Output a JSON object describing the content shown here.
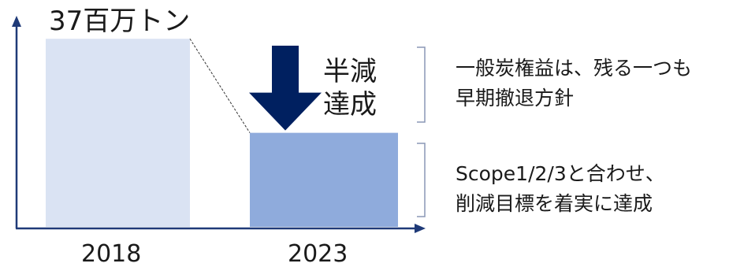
{
  "chart_data": {
    "type": "bar",
    "categories": [
      "2018",
      "2023"
    ],
    "series": [
      {
        "values": [
          37,
          18.5
        ]
      }
    ],
    "value_label": "37百万トン",
    "ylim": [
      0,
      42
    ],
    "grid": false,
    "colors": [
      "#dae3f3",
      "#8fabdc"
    ],
    "arrow_color": "#002060"
  },
  "annotations": {
    "halved": [
      "半減",
      "達成"
    ],
    "coal_note": [
      "一般炭権益は、残る一つも",
      "早期撤退方針"
    ],
    "scope_note": [
      "Scope1/2/3と合わせ、",
      "削減目標を着実に達成"
    ]
  }
}
